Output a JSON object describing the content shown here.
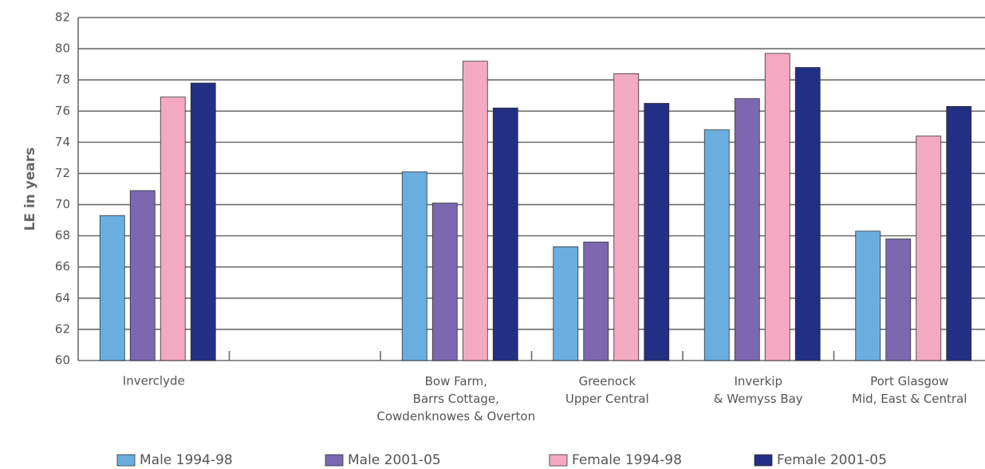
{
  "chart_data": {
    "type": "bar",
    "y_label": "LE in years",
    "categories": [
      "Inverclyde",
      null,
      "Bow Farm,\nBarrs Cottage,\nCowdenknowes & Overton",
      "Greenock\nUpper Central",
      "Inverkip\n& Wemyss Bay",
      "Port Glasgow\nMid, East & Central"
    ],
    "series": [
      {
        "name": "Male 1994-98",
        "color": "#6aaee0",
        "values": [
          69.3,
          null,
          72.1,
          67.3,
          74.8,
          68.3
        ]
      },
      {
        "name": "Male 2001-05",
        "color": "#7b68b0",
        "values": [
          70.9,
          null,
          70.1,
          67.6,
          76.8,
          67.8
        ]
      },
      {
        "name": "Female 1994-98",
        "color": "#f4a9c3",
        "values": [
          76.9,
          null,
          79.2,
          78.4,
          79.7,
          74.4
        ]
      },
      {
        "name": "Female 2001-05",
        "color": "#222f84",
        "values": [
          77.8,
          null,
          76.2,
          76.5,
          78.8,
          76.3
        ]
      }
    ],
    "ylim": [
      60,
      82
    ],
    "yticks": [
      60,
      62,
      64,
      66,
      68,
      70,
      72,
      74,
      76,
      78,
      80,
      82
    ],
    "grid": true,
    "legend": "bottom"
  }
}
